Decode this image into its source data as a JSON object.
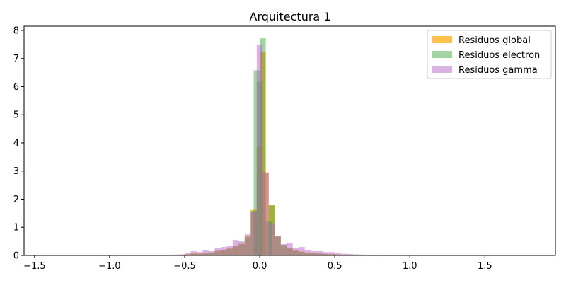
{
  "chart_data": {
    "type": "bar",
    "title": "Arquitectura 1",
    "xlabel": "",
    "ylabel": "",
    "xlim": [
      -1.57,
      1.97
    ],
    "ylim": [
      0,
      8.15
    ],
    "xticks": [
      -1.5,
      -1.0,
      -0.5,
      0.0,
      0.5,
      1.0,
      1.5
    ],
    "xtick_labels": [
      "−1.5",
      "−1.0",
      "−0.5",
      "0.0",
      "0.5",
      "1.0",
      "1.5"
    ],
    "yticks": [
      0,
      1,
      2,
      3,
      4,
      5,
      6,
      7,
      8
    ],
    "ytick_labels": [
      "0",
      "1",
      "2",
      "3",
      "4",
      "5",
      "6",
      "7",
      "8"
    ],
    "grid": false,
    "legend_position": "top-right",
    "bin_width": 0.04,
    "series": [
      {
        "name": "Residuos global",
        "color": "#FFA500",
        "opacity": 0.7,
        "bins": [
          [
            -0.62,
            0.01
          ],
          [
            -0.58,
            0.01
          ],
          [
            -0.54,
            0.02
          ],
          [
            -0.5,
            0.05
          ],
          [
            -0.46,
            0.08
          ],
          [
            -0.42,
            0.07
          ],
          [
            -0.38,
            0.1
          ],
          [
            -0.34,
            0.11
          ],
          [
            -0.3,
            0.17
          ],
          [
            -0.26,
            0.2
          ],
          [
            -0.22,
            0.25
          ],
          [
            -0.18,
            0.35
          ],
          [
            -0.14,
            0.42
          ],
          [
            -0.1,
            0.68
          ],
          [
            -0.06,
            1.62
          ],
          [
            -0.02,
            3.85
          ],
          [
            0.0,
            7.22
          ],
          [
            0.02,
            2.95
          ],
          [
            0.06,
            1.78
          ],
          [
            0.1,
            0.7
          ],
          [
            0.14,
            0.35
          ],
          [
            0.18,
            0.26
          ],
          [
            0.22,
            0.18
          ],
          [
            0.26,
            0.14
          ],
          [
            0.3,
            0.1
          ],
          [
            0.34,
            0.08
          ],
          [
            0.38,
            0.07
          ],
          [
            0.42,
            0.06
          ],
          [
            0.46,
            0.05
          ],
          [
            0.5,
            0.04
          ],
          [
            0.54,
            0.03
          ],
          [
            0.58,
            0.03
          ],
          [
            0.62,
            0.02
          ],
          [
            0.66,
            0.02
          ],
          [
            0.7,
            0.01
          ],
          [
            0.74,
            0.01
          ],
          [
            0.78,
            0.02
          ]
        ]
      },
      {
        "name": "Residuos electron",
        "color": "#2CA02C",
        "opacity": 0.45,
        "bins": [
          [
            -0.54,
            0.01
          ],
          [
            -0.5,
            0.03
          ],
          [
            -0.46,
            0.05
          ],
          [
            -0.42,
            0.05
          ],
          [
            -0.38,
            0.07
          ],
          [
            -0.34,
            0.09
          ],
          [
            -0.3,
            0.14
          ],
          [
            -0.26,
            0.19
          ],
          [
            -0.22,
            0.23
          ],
          [
            -0.18,
            0.33
          ],
          [
            -0.14,
            0.4
          ],
          [
            -0.1,
            0.64
          ],
          [
            -0.06,
            1.58
          ],
          [
            -0.04,
            6.58
          ],
          [
            -0.02,
            6.18
          ],
          [
            0.0,
            7.72
          ],
          [
            0.04,
            1.2
          ],
          [
            0.06,
            1.78
          ],
          [
            0.1,
            0.66
          ],
          [
            0.14,
            0.38
          ],
          [
            0.18,
            0.24
          ],
          [
            0.22,
            0.16
          ],
          [
            0.26,
            0.12
          ],
          [
            0.3,
            0.09
          ],
          [
            0.34,
            0.07
          ],
          [
            0.38,
            0.06
          ],
          [
            0.42,
            0.05
          ],
          [
            0.46,
            0.04
          ],
          [
            0.5,
            0.03
          ],
          [
            0.54,
            0.02
          ],
          [
            0.58,
            0.02
          ],
          [
            0.62,
            0.01
          ],
          [
            0.66,
            0.01
          ]
        ]
      },
      {
        "name": "Residuos gamma",
        "color": "#B565C9",
        "opacity": 0.5,
        "bins": [
          [
            -0.78,
            0.01
          ],
          [
            -0.74,
            0.01
          ],
          [
            -0.62,
            0.02
          ],
          [
            -0.58,
            0.03
          ],
          [
            -0.54,
            0.04
          ],
          [
            -0.5,
            0.1
          ],
          [
            -0.46,
            0.15
          ],
          [
            -0.42,
            0.12
          ],
          [
            -0.38,
            0.2
          ],
          [
            -0.34,
            0.15
          ],
          [
            -0.3,
            0.25
          ],
          [
            -0.26,
            0.3
          ],
          [
            -0.22,
            0.35
          ],
          [
            -0.18,
            0.55
          ],
          [
            -0.14,
            0.5
          ],
          [
            -0.1,
            0.75
          ],
          [
            -0.06,
            1.55
          ],
          [
            -0.02,
            7.5
          ],
          [
            0.02,
            2.95
          ],
          [
            0.06,
            1.15
          ],
          [
            0.1,
            0.7
          ],
          [
            0.14,
            0.4
          ],
          [
            0.18,
            0.45
          ],
          [
            0.22,
            0.25
          ],
          [
            0.26,
            0.3
          ],
          [
            0.3,
            0.2
          ],
          [
            0.34,
            0.15
          ],
          [
            0.38,
            0.15
          ],
          [
            0.42,
            0.12
          ],
          [
            0.46,
            0.12
          ],
          [
            0.5,
            0.08
          ],
          [
            0.54,
            0.06
          ],
          [
            0.58,
            0.05
          ],
          [
            0.62,
            0.04
          ],
          [
            0.66,
            0.03
          ],
          [
            0.7,
            0.02
          ],
          [
            0.74,
            0.02
          ],
          [
            0.78,
            0.02
          ],
          [
            0.82,
            0.01
          ],
          [
            0.94,
            0.01
          ],
          [
            0.98,
            0.01
          ]
        ]
      }
    ]
  }
}
